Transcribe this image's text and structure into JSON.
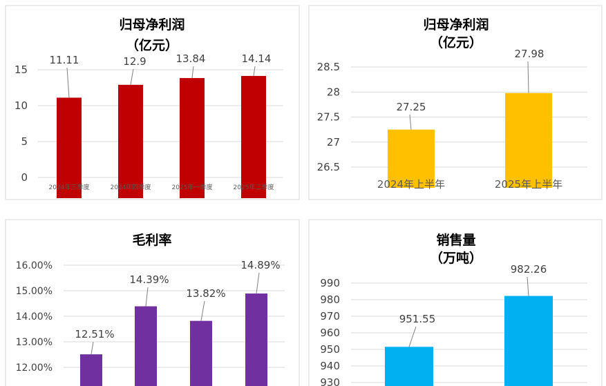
{
  "chart_data": [
    {
      "type": "bar",
      "title": "归母净利润",
      "subtitle": "（亿元）",
      "categories": [
        "2024年三季度",
        "2024年四季度",
        "2025年一季度",
        "2025年二季度"
      ],
      "values": [
        11.11,
        12.9,
        13.84,
        14.14
      ],
      "data_labels": [
        "11.11",
        "12.9",
        "13.84",
        "14.14"
      ],
      "ylim": [
        0,
        15
      ],
      "yticks": [
        "0",
        "5",
        "10",
        "15"
      ],
      "color": "#c00000",
      "grid": true
    },
    {
      "type": "bar",
      "title": "归母净利润",
      "subtitle": "（亿元）",
      "categories": [
        "2024年上半年",
        "2025年上半年"
      ],
      "values": [
        27.25,
        27.98
      ],
      "data_labels": [
        "27.25",
        "27.98"
      ],
      "ylim": [
        26.5,
        28.5
      ],
      "yticks": [
        "26.5",
        "27",
        "27.5",
        "28",
        "28.5"
      ],
      "color": "#ffc000",
      "grid": true
    },
    {
      "type": "bar",
      "title": "毛利率",
      "subtitle": "",
      "categories": [
        "",
        "",
        "",
        ""
      ],
      "values": [
        12.51,
        14.39,
        13.82,
        14.89
      ],
      "data_labels": [
        "12.51%",
        "14.39%",
        "13.82%",
        "14.89%"
      ],
      "ylim": [
        12,
        16
      ],
      "yticks": [
        "12.00%",
        "13.00%",
        "14.00%",
        "15.00%",
        "16.00%"
      ],
      "color": "#7030a0",
      "grid": true
    },
    {
      "type": "bar",
      "title": "销售量",
      "subtitle": "（万吨）",
      "categories": [
        "",
        ""
      ],
      "values": [
        951.55,
        982.26
      ],
      "data_labels": [
        "951.55",
        "982.26"
      ],
      "ylim": [
        930,
        990
      ],
      "yticks": [
        "930",
        "940",
        "950",
        "960",
        "970",
        "980",
        "990"
      ],
      "color": "#00b0f0",
      "grid": true
    }
  ]
}
